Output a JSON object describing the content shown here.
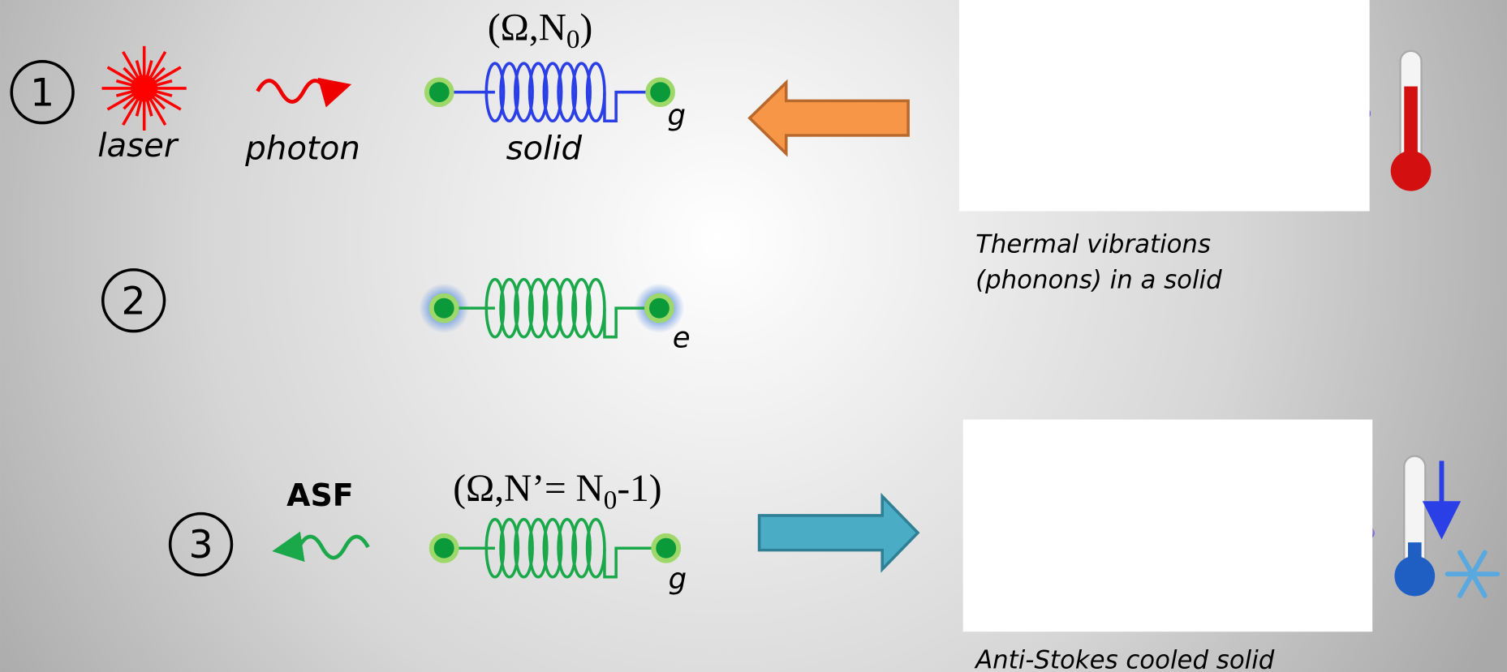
{
  "step1": {
    "label": "1",
    "laser": "laser",
    "photon": "photon",
    "state_parts": [
      "(Ω,N",
      "0",
      ")"
    ],
    "solid": "solid",
    "ground": "g"
  },
  "step2": {
    "label": "2",
    "excited": "e"
  },
  "step3": {
    "label": "3",
    "asf": "ASF",
    "state_parts": [
      "(Ω,N’= N",
      "0",
      "-1)"
    ],
    "ground": "g"
  },
  "panels": [
    {
      "caption_lines": [
        "Thermal vibrations",
        "(phonons) in a solid"
      ]
    },
    {
      "caption_lines": [
        "Anti-Stokes cooled solid"
      ]
    }
  ]
}
